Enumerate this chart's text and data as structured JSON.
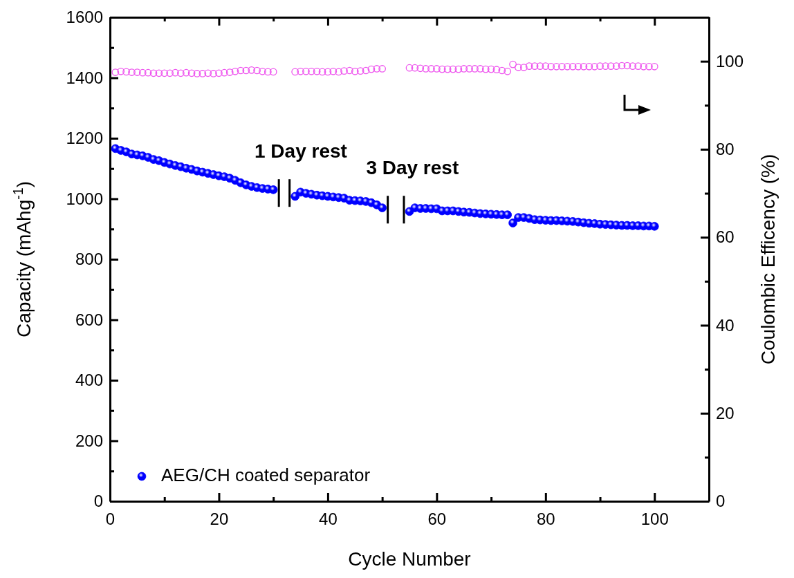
{
  "chart_data": {
    "type": "scatter",
    "xlabel": "Cycle Number",
    "ylabel": "Capacity (mAhg$^{-1}$)",
    "y2label": "Coulombic Efficency (%)",
    "x": [
      1,
      2,
      3,
      4,
      5,
      6,
      7,
      8,
      9,
      10,
      11,
      12,
      13,
      14,
      15,
      16,
      17,
      18,
      19,
      20,
      21,
      22,
      23,
      24,
      25,
      26,
      27,
      28,
      29,
      30,
      31,
      32,
      33,
      34,
      35,
      36,
      37,
      38,
      39,
      40,
      41,
      42,
      43,
      44,
      45,
      46,
      47,
      48,
      49,
      50,
      51,
      52,
      53,
      54,
      55,
      56,
      57,
      58,
      59,
      60,
      61,
      62,
      63,
      64,
      65,
      66,
      67,
      68,
      69,
      70,
      71,
      72,
      73,
      74,
      75,
      76,
      77,
      78,
      79,
      80,
      81,
      82,
      83,
      84,
      85,
      86,
      87,
      88,
      89,
      90,
      91,
      92,
      93,
      94,
      95,
      96,
      97,
      98,
      99,
      100
    ],
    "series": [
      {
        "name": "AEG/CH coated separator",
        "color": "#0000ff",
        "values": [
          1166,
          1160,
          1155,
          1148,
          1145,
          1142,
          1137,
          1130,
          1126,
          1120,
          1115,
          1110,
          1106,
          1101,
          1097,
          1092,
          1088,
          1084,
          1080,
          1076,
          1073,
          1068,
          1061,
          1053,
          1046,
          1041,
          1037,
          1034,
          1032,
          1030,
          null,
          null,
          null,
          1008,
          1022,
          1018,
          1015,
          1012,
          1010,
          1008,
          1006,
          1004,
          1002,
          995,
          994,
          993,
          991,
          987,
          980,
          970,
          null,
          null,
          null,
          null,
          958,
          970,
          968,
          968,
          967,
          967,
          960,
          960,
          960,
          958,
          956,
          955,
          953,
          951,
          950,
          949,
          948,
          947,
          947,
          920,
          938,
          938,
          935,
          931,
          930,
          929,
          928,
          928,
          927,
          926,
          925,
          923,
          921,
          919,
          918,
          916,
          915,
          914,
          913,
          912,
          912,
          911,
          911,
          910,
          910,
          909
        ]
      },
      {
        "color": "#ee55ee",
        "axis": "y2",
        "values": [
          97.5,
          97.7,
          97.6,
          97.5,
          97.5,
          97.4,
          97.4,
          97.3,
          97.3,
          97.3,
          97.3,
          97.4,
          97.3,
          97.4,
          97.3,
          97.2,
          97.2,
          97.3,
          97.2,
          97.3,
          97.4,
          97.5,
          97.7,
          97.9,
          97.9,
          98.0,
          97.9,
          97.7,
          97.6,
          97.6,
          null,
          null,
          null,
          97.6,
          97.7,
          97.7,
          97.7,
          97.7,
          97.6,
          97.6,
          97.7,
          97.6,
          97.8,
          97.9,
          97.7,
          97.8,
          97.9,
          98.2,
          98.3,
          98.3,
          null,
          null,
          null,
          null,
          98.5,
          98.5,
          98.4,
          98.3,
          98.3,
          98.3,
          98.2,
          98.2,
          98.2,
          98.2,
          98.3,
          98.3,
          98.3,
          98.3,
          98.2,
          98.2,
          98.1,
          97.9,
          97.7,
          99.3,
          98.6,
          98.6,
          98.9,
          98.9,
          98.9,
          98.9,
          98.8,
          98.8,
          98.8,
          98.8,
          98.8,
          98.8,
          98.8,
          98.8,
          98.8,
          98.9,
          98.9,
          98.9,
          98.9,
          99.0,
          99.0,
          98.9,
          98.9,
          98.8,
          98.8,
          98.8
        ]
      }
    ],
    "marker": "circle",
    "legend": "bottom left",
    "xlim": [
      0,
      110
    ],
    "xticks": [
      0,
      {
        "value": 10,
        "label": null
      },
      20,
      {
        "value": 30,
        "label": null
      },
      40,
      {
        "value": 50,
        "label": null
      },
      60,
      {
        "value": 70,
        "label": null
      },
      80,
      {
        "value": 90,
        "label": null
      },
      100,
      {
        "value": 110,
        "label": null
      }
    ],
    "ylim": [
      0,
      1600
    ],
    "yticks": [
      0,
      {
        "value": 100,
        "label": null
      },
      200,
      {
        "value": 300,
        "label": null
      },
      400,
      {
        "value": 500,
        "label": null
      },
      600,
      {
        "value": 700,
        "label": null
      },
      800,
      {
        "value": 900,
        "label": null
      },
      1000,
      {
        "value": 1100,
        "label": null
      },
      1200,
      {
        "value": 1300,
        "label": null
      },
      1400,
      {
        "value": 1500,
        "label": null
      },
      1600
    ],
    "y2lim": [
      0,
      110
    ],
    "y2ticks": [
      0,
      {
        "value": 10,
        "label": null
      },
      20,
      {
        "value": 30,
        "label": null
      },
      40,
      {
        "value": 50,
        "label": null
      },
      60,
      {
        "value": 70,
        "label": null
      },
      80,
      {
        "value": 90,
        "label": null
      },
      100
    ],
    "annotations": [
      "1 Day rest",
      "3 Day rest"
    ]
  }
}
